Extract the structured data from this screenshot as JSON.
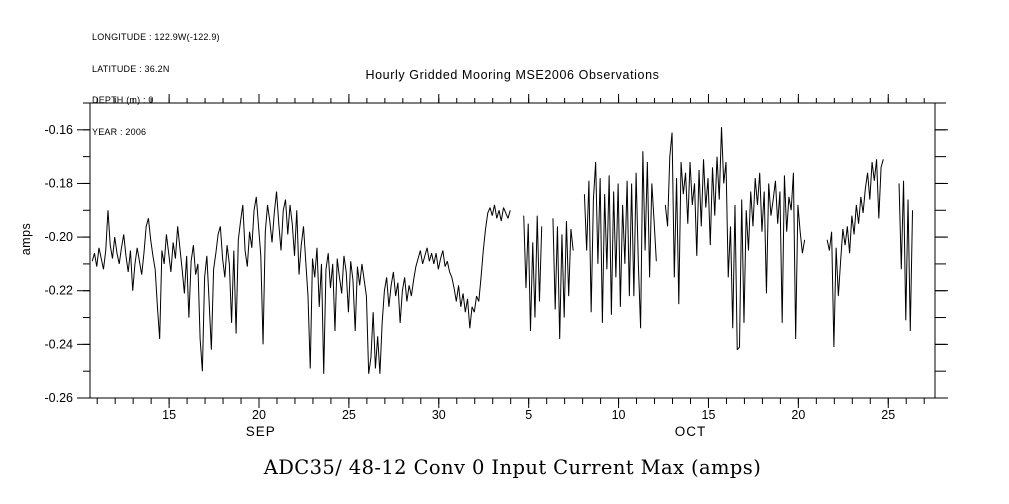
{
  "page": {
    "background": "#ffffff",
    "ink": "#000000"
  },
  "metadata_block": {
    "lines": [
      "LONGITUDE : 122.9W(-122.9)",
      "LATITUDE : 36.2N",
      "DEPTH (m) : 0",
      "YEAR : 2006"
    ]
  },
  "title": "Hourly Gridded Mooring MSE2006 Observations",
  "caption": "ADC35/ 48-12 Conv 0 Input Current Max (amps)",
  "chart_data": {
    "type": "line",
    "title": "Hourly Gridded Mooring MSE2006 Observations",
    "series_name": "ADC35/ 48-12 Conv 0 Input Current Max (amps)",
    "ylabel": "amps",
    "line_color": "#000000",
    "grid": false,
    "legend": "none",
    "ylim": [
      -0.26,
      -0.15
    ],
    "y_major_ticks": [
      {
        "v": -0.16,
        "label": "-0.16"
      },
      {
        "v": -0.18,
        "label": "-0.18"
      },
      {
        "v": -0.2,
        "label": "-0.20"
      },
      {
        "v": -0.22,
        "label": "-0.22"
      },
      {
        "v": -0.24,
        "label": "-0.24"
      },
      {
        "v": -0.26,
        "label": "-0.26"
      }
    ],
    "y_minor_step": 0.01,
    "x_span_days": [
      0,
      47
    ],
    "x_unit": "days",
    "x_minor_tick_start": 0.4,
    "x_minor_tick_step": 1,
    "x_major_ticks": [
      {
        "t": 4.4,
        "label": "15"
      },
      {
        "t": 9.4,
        "label": "20"
      },
      {
        "t": 14.4,
        "label": "25"
      },
      {
        "t": 19.4,
        "label": "30"
      },
      {
        "t": 24.4,
        "label": "5"
      },
      {
        "t": 29.4,
        "label": "10"
      },
      {
        "t": 34.4,
        "label": "15"
      },
      {
        "t": 39.4,
        "label": "20"
      },
      {
        "t": 44.4,
        "label": "25"
      }
    ],
    "x_month_labels": [
      {
        "t": 9.5,
        "label": "SEP"
      },
      {
        "t": 33.4,
        "label": "OCT"
      }
    ],
    "series": {
      "t0": 0.125,
      "dt": 0.125,
      "values": [
        -0.209,
        -0.206,
        -0.211,
        -0.204,
        -0.208,
        -0.212,
        -0.205,
        -0.19,
        -0.203,
        -0.208,
        -0.2,
        -0.206,
        -0.21,
        -0.204,
        -0.199,
        -0.207,
        -0.213,
        -0.205,
        -0.22,
        -0.21,
        -0.204,
        -0.209,
        -0.214,
        -0.206,
        -0.196,
        -0.193,
        -0.201,
        -0.207,
        -0.212,
        -0.226,
        -0.238,
        -0.205,
        -0.21,
        -0.199,
        -0.206,
        -0.213,
        -0.202,
        -0.208,
        -0.196,
        -0.204,
        -0.212,
        -0.221,
        -0.207,
        -0.23,
        -0.209,
        -0.203,
        -0.214,
        -0.21,
        -0.238,
        -0.25,
        -0.215,
        -0.207,
        -0.224,
        -0.242,
        -0.212,
        -0.206,
        -0.199,
        -0.196,
        -0.208,
        -0.215,
        -0.203,
        -0.21,
        -0.232,
        -0.205,
        -0.236,
        -0.201,
        -0.194,
        -0.188,
        -0.205,
        -0.211,
        -0.198,
        -0.204,
        -0.19,
        -0.185,
        -0.196,
        -0.207,
        -0.24,
        -0.198,
        -0.188,
        -0.194,
        -0.202,
        -0.191,
        -0.183,
        -0.195,
        -0.205,
        -0.19,
        -0.186,
        -0.199,
        -0.188,
        -0.195,
        -0.207,
        -0.19,
        -0.214,
        -0.203,
        -0.196,
        -0.209,
        -0.222,
        -0.249,
        -0.208,
        -0.215,
        -0.204,
        -0.226,
        -0.21,
        -0.251,
        -0.212,
        -0.206,
        -0.219,
        -0.21,
        -0.235,
        -0.208,
        -0.215,
        -0.221,
        -0.207,
        -0.213,
        -0.228,
        -0.209,
        -0.216,
        -0.235,
        -0.211,
        -0.218,
        -0.21,
        -0.216,
        -0.222,
        -0.251,
        -0.245,
        -0.228,
        -0.249,
        -0.237,
        -0.251,
        -0.232,
        -0.22,
        -0.215,
        -0.226,
        -0.218,
        -0.213,
        -0.222,
        -0.217,
        -0.232,
        -0.22,
        -0.215,
        -0.224,
        -0.218,
        -0.222,
        -0.216,
        -0.211,
        -0.208,
        -0.205,
        -0.21,
        -0.207,
        -0.204,
        -0.209,
        -0.206,
        -0.21,
        -0.206,
        -0.212,
        -0.208,
        -0.205,
        -0.211,
        -0.209,
        -0.213,
        -0.215,
        -0.219,
        -0.224,
        -0.218,
        -0.226,
        -0.221,
        -0.228,
        -0.223,
        -0.234,
        -0.226,
        -0.228,
        -0.222,
        -0.224,
        -0.215,
        -0.205,
        -0.197,
        -0.191,
        -0.189,
        -0.192,
        -0.188,
        -0.193,
        -0.19,
        -0.194,
        -0.189,
        -0.191,
        -0.193,
        -0.19,
        null,
        null,
        null,
        null,
        null,
        -0.192,
        -0.219,
        -0.195,
        -0.235,
        -0.202,
        -0.23,
        -0.192,
        -0.224,
        -0.196,
        null,
        null,
        null,
        null,
        -0.193,
        -0.227,
        -0.196,
        -0.238,
        -0.199,
        -0.23,
        -0.194,
        -0.222,
        -0.197,
        -0.205,
        null,
        null,
        null,
        null,
        -0.184,
        -0.205,
        -0.179,
        -0.228,
        -0.186,
        -0.172,
        -0.21,
        -0.178,
        -0.232,
        -0.184,
        -0.212,
        -0.177,
        -0.229,
        -0.183,
        -0.215,
        -0.18,
        -0.226,
        -0.188,
        -0.21,
        -0.179,
        -0.222,
        -0.18,
        -0.222,
        -0.176,
        -0.21,
        -0.234,
        -0.168,
        -0.205,
        -0.172,
        -0.215,
        -0.18,
        -0.194,
        -0.209,
        null,
        null,
        null,
        -0.188,
        -0.196,
        -0.17,
        -0.161,
        -0.215,
        -0.178,
        -0.225,
        -0.172,
        -0.184,
        -0.176,
        -0.195,
        -0.172,
        -0.188,
        -0.18,
        -0.207,
        -0.175,
        -0.196,
        -0.171,
        -0.189,
        -0.178,
        -0.203,
        -0.174,
        -0.192,
        -0.17,
        -0.186,
        -0.159,
        -0.18,
        -0.172,
        -0.215,
        -0.196,
        -0.234,
        -0.188,
        -0.242,
        -0.241,
        -0.186,
        -0.232,
        -0.19,
        -0.205,
        -0.183,
        -0.196,
        -0.178,
        -0.188,
        -0.176,
        -0.198,
        -0.183,
        -0.221,
        -0.18,
        -0.192,
        -0.186,
        -0.179,
        -0.195,
        -0.183,
        -0.232,
        -0.177,
        -0.198,
        -0.185,
        -0.19,
        -0.176,
        -0.238,
        -0.188,
        -0.198,
        -0.206,
        -0.201,
        null,
        null,
        null,
        null,
        null,
        null,
        null,
        null,
        null,
        -0.201,
        -0.205,
        -0.198,
        -0.241,
        -0.204,
        -0.222,
        -0.209,
        -0.197,
        -0.203,
        -0.196,
        -0.206,
        -0.192,
        -0.199,
        -0.188,
        -0.195,
        -0.185,
        -0.191,
        -0.182,
        -0.176,
        -0.186,
        -0.172,
        -0.179,
        -0.171,
        -0.193,
        -0.174,
        -0.171,
        null,
        null,
        null,
        null,
        null,
        null,
        -0.18,
        -0.212,
        -0.179,
        -0.231,
        -0.186,
        -0.235,
        -0.19
      ]
    }
  }
}
